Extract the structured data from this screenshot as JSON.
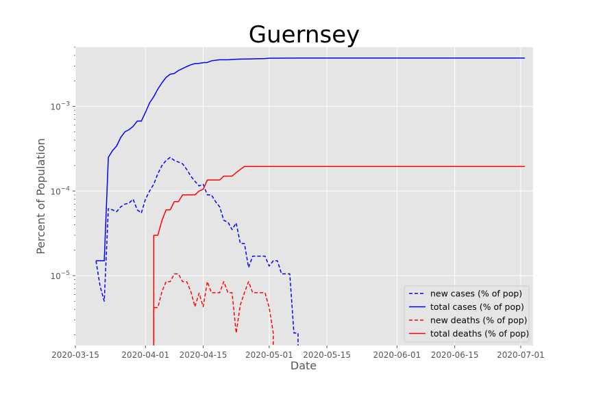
{
  "chart_data": {
    "type": "line",
    "title": "Guernsey",
    "xlabel": "Date",
    "ylabel": "Percent of Population",
    "xlim": [
      "2020-03-15",
      "2020-07-04"
    ],
    "ylim": [
      1.5e-06,
      0.005
    ],
    "yscale": "log",
    "grid": true,
    "legend_position": "bottom-right",
    "x_ticks": [
      "2020-03-15",
      "2020-04-01",
      "2020-04-15",
      "2020-05-01",
      "2020-05-15",
      "2020-06-01",
      "2020-06-15",
      "2020-07-01"
    ],
    "y_ticks": [
      {
        "value": 1e-05,
        "base": "10",
        "exp": "−5"
      },
      {
        "value": 0.0001,
        "base": "10",
        "exp": "−4"
      },
      {
        "value": 0.001,
        "base": "10",
        "exp": "−3"
      }
    ],
    "series": [
      {
        "name": "new cases (% of pop)",
        "color": "#0000ff",
        "dash": true,
        "points": [
          [
            "2020-03-20",
            1.5e-05
          ],
          [
            "2020-03-21",
            7.5e-06
          ],
          [
            "2020-03-22",
            5e-06
          ],
          [
            "2020-03-23",
            6.2e-05
          ],
          [
            "2020-03-24",
            6e-05
          ],
          [
            "2020-03-25",
            5.7e-05
          ],
          [
            "2020-03-26",
            6.5e-05
          ],
          [
            "2020-03-27",
            7e-05
          ],
          [
            "2020-03-28",
            7.2e-05
          ],
          [
            "2020-03-29",
            8e-05
          ],
          [
            "2020-03-30",
            6e-05
          ],
          [
            "2020-03-31",
            5.5e-05
          ],
          [
            "2020-04-01",
            8e-05
          ],
          [
            "2020-04-02",
            0.0001
          ],
          [
            "2020-04-03",
            0.00012
          ],
          [
            "2020-04-04",
            0.00016
          ],
          [
            "2020-04-05",
            0.0002
          ],
          [
            "2020-04-06",
            0.00023
          ],
          [
            "2020-04-07",
            0.00025
          ],
          [
            "2020-04-08",
            0.00023
          ],
          [
            "2020-04-09",
            0.00022
          ],
          [
            "2020-04-10",
            0.00021
          ],
          [
            "2020-04-11",
            0.00018
          ],
          [
            "2020-04-12",
            0.00015
          ],
          [
            "2020-04-13",
            0.00013
          ],
          [
            "2020-04-14",
            0.000115
          ],
          [
            "2020-04-15",
            0.00012
          ],
          [
            "2020-04-16",
            9e-05
          ],
          [
            "2020-04-17",
            9e-05
          ],
          [
            "2020-04-18",
            7.5e-05
          ],
          [
            "2020-04-19",
            6.5e-05
          ],
          [
            "2020-04-20",
            4.5e-05
          ],
          [
            "2020-04-21",
            4.3e-05
          ],
          [
            "2020-04-22",
            3.5e-05
          ],
          [
            "2020-04-23",
            4.2e-05
          ],
          [
            "2020-04-24",
            2.4e-05
          ],
          [
            "2020-04-25",
            2.4e-05
          ],
          [
            "2020-04-26",
            1.25e-05
          ],
          [
            "2020-04-27",
            1.7e-05
          ],
          [
            "2020-04-28",
            1.7e-05
          ],
          [
            "2020-04-29",
            1.7e-05
          ],
          [
            "2020-04-30",
            1.7e-05
          ],
          [
            "2020-05-01",
            1.3e-05
          ],
          [
            "2020-05-02",
            1.5e-05
          ],
          [
            "2020-05-03",
            1.5e-05
          ],
          [
            "2020-05-04",
            1.05e-05
          ],
          [
            "2020-05-05",
            1.05e-05
          ],
          [
            "2020-05-06",
            1.05e-05
          ],
          [
            "2020-05-07",
            2.1e-06
          ],
          [
            "2020-05-08",
            2.1e-06
          ],
          [
            "2020-05-08",
            1.5e-06
          ]
        ]
      },
      {
        "name": "total cases (% of pop)",
        "color": "#0000ff",
        "dash": false,
        "points": [
          [
            "2020-03-20",
            1.5e-05
          ],
          [
            "2020-03-22",
            1.5e-05
          ],
          [
            "2020-03-23",
            0.00025
          ],
          [
            "2020-03-24",
            0.0003
          ],
          [
            "2020-03-25",
            0.00034
          ],
          [
            "2020-03-26",
            0.00043
          ],
          [
            "2020-03-27",
            0.0005
          ],
          [
            "2020-03-28",
            0.00053
          ],
          [
            "2020-03-29",
            0.00058
          ],
          [
            "2020-03-30",
            0.00067
          ],
          [
            "2020-03-31",
            0.00067
          ],
          [
            "2020-04-01",
            0.00085
          ],
          [
            "2020-04-02",
            0.0011
          ],
          [
            "2020-04-03",
            0.0013
          ],
          [
            "2020-04-04",
            0.0016
          ],
          [
            "2020-04-05",
            0.0019
          ],
          [
            "2020-04-06",
            0.0022
          ],
          [
            "2020-04-07",
            0.0024
          ],
          [
            "2020-04-08",
            0.00245
          ],
          [
            "2020-04-09",
            0.00265
          ],
          [
            "2020-04-10",
            0.0028
          ],
          [
            "2020-04-11",
            0.00295
          ],
          [
            "2020-04-12",
            0.0031
          ],
          [
            "2020-04-13",
            0.0032
          ],
          [
            "2020-04-14",
            0.00322
          ],
          [
            "2020-04-15",
            0.00328
          ],
          [
            "2020-04-16",
            0.0033
          ],
          [
            "2020-04-17",
            0.00345
          ],
          [
            "2020-04-18",
            0.0035
          ],
          [
            "2020-04-19",
            0.00355
          ],
          [
            "2020-04-21",
            0.00355
          ],
          [
            "2020-04-22",
            0.00358
          ],
          [
            "2020-04-23",
            0.0036
          ],
          [
            "2020-04-24",
            0.00362
          ],
          [
            "2020-04-26",
            0.00363
          ],
          [
            "2020-04-28",
            0.00365
          ],
          [
            "2020-04-30",
            0.00367
          ],
          [
            "2020-05-01",
            0.0037
          ],
          [
            "2020-05-04",
            0.00371
          ],
          [
            "2020-05-08",
            0.00372
          ],
          [
            "2020-07-02",
            0.00372
          ]
        ]
      },
      {
        "name": "new deaths (% of pop)",
        "color": "#ff0000",
        "dash": true,
        "points": [
          [
            "2020-04-03",
            1.5e-06
          ],
          [
            "2020-04-03",
            4.2e-06
          ],
          [
            "2020-04-04",
            4.2e-06
          ],
          [
            "2020-04-05",
            6.5e-06
          ],
          [
            "2020-04-06",
            8.5e-06
          ],
          [
            "2020-04-07",
            8.5e-06
          ],
          [
            "2020-04-08",
            1.05e-05
          ],
          [
            "2020-04-09",
            1.05e-05
          ],
          [
            "2020-04-10",
            8.5e-06
          ],
          [
            "2020-04-11",
            8.5e-06
          ],
          [
            "2020-04-12",
            6.5e-06
          ],
          [
            "2020-04-13",
            4.3e-06
          ],
          [
            "2020-04-14",
            6.2e-06
          ],
          [
            "2020-04-15",
            4.3e-06
          ],
          [
            "2020-04-16",
            8.5e-06
          ],
          [
            "2020-04-17",
            6.3e-06
          ],
          [
            "2020-04-18",
            6.3e-06
          ],
          [
            "2020-04-19",
            6.3e-06
          ],
          [
            "2020-04-20",
            8.5e-06
          ],
          [
            "2020-04-21",
            6.3e-06
          ],
          [
            "2020-04-22",
            6.3e-06
          ],
          [
            "2020-04-23",
            2.1e-06
          ],
          [
            "2020-04-24",
            4.5e-06
          ],
          [
            "2020-04-25",
            6.3e-06
          ],
          [
            "2020-04-26",
            8.5e-06
          ],
          [
            "2020-04-27",
            6.3e-06
          ],
          [
            "2020-04-28",
            6.3e-06
          ],
          [
            "2020-04-29",
            6.3e-06
          ],
          [
            "2020-04-30",
            6.3e-06
          ],
          [
            "2020-05-01",
            4.2e-06
          ],
          [
            "2020-05-02",
            2.1e-06
          ],
          [
            "2020-05-02",
            1.5e-06
          ]
        ]
      },
      {
        "name": "total deaths (% of pop)",
        "color": "#ff0000",
        "dash": false,
        "points": [
          [
            "2020-04-03",
            1.5e-06
          ],
          [
            "2020-04-03",
            3e-05
          ],
          [
            "2020-04-04",
            3e-05
          ],
          [
            "2020-04-05",
            4.5e-05
          ],
          [
            "2020-04-06",
            6e-05
          ],
          [
            "2020-04-07",
            6e-05
          ],
          [
            "2020-04-08",
            7.5e-05
          ],
          [
            "2020-04-09",
            7.5e-05
          ],
          [
            "2020-04-10",
            9e-05
          ],
          [
            "2020-04-13",
            9e-05
          ],
          [
            "2020-04-14",
            0.0001
          ],
          [
            "2020-04-15",
            0.000105
          ],
          [
            "2020-04-16",
            0.000135
          ],
          [
            "2020-04-19",
            0.000135
          ],
          [
            "2020-04-20",
            0.00015
          ],
          [
            "2020-04-22",
            0.00015
          ],
          [
            "2020-04-23",
            0.000165
          ],
          [
            "2020-04-24",
            0.00018
          ],
          [
            "2020-04-25",
            0.000195
          ],
          [
            "2020-07-02",
            0.000195
          ]
        ]
      }
    ]
  }
}
